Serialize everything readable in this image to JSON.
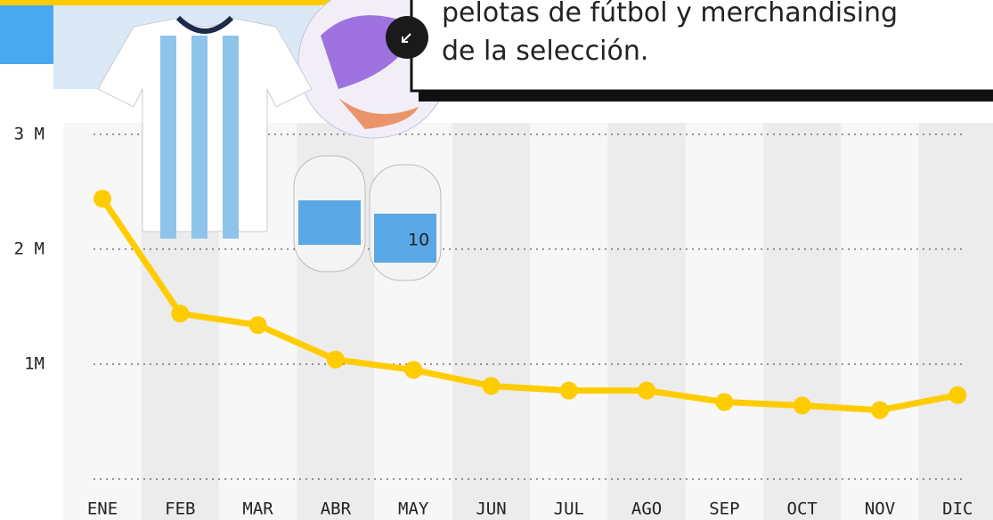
{
  "chart_data": {
    "type": "line",
    "annotation": [
      "pelotas de fútbol y merchandising",
      "de la selección."
    ],
    "categories": [
      "ENE",
      "FEB",
      "MAR",
      "ABR",
      "MAY",
      "JUN",
      "JUL",
      "AGO",
      "SEP",
      "OCT",
      "NOV",
      "DIC"
    ],
    "series": [
      {
        "color": "#ffcc00",
        "values": [
          2440000,
          1440000,
          1340000,
          1040000,
          950000,
          810000,
          770000,
          770000,
          670000,
          640000,
          600000,
          730000
        ]
      }
    ],
    "ylim": [
      0,
      3100000
    ],
    "yticks": [
      {
        "value": 1000000,
        "label": "1M"
      },
      {
        "value": 2000000,
        "label": "2 M"
      },
      {
        "value": 3000000,
        "label": "3 M"
      }
    ],
    "grid": true
  }
}
